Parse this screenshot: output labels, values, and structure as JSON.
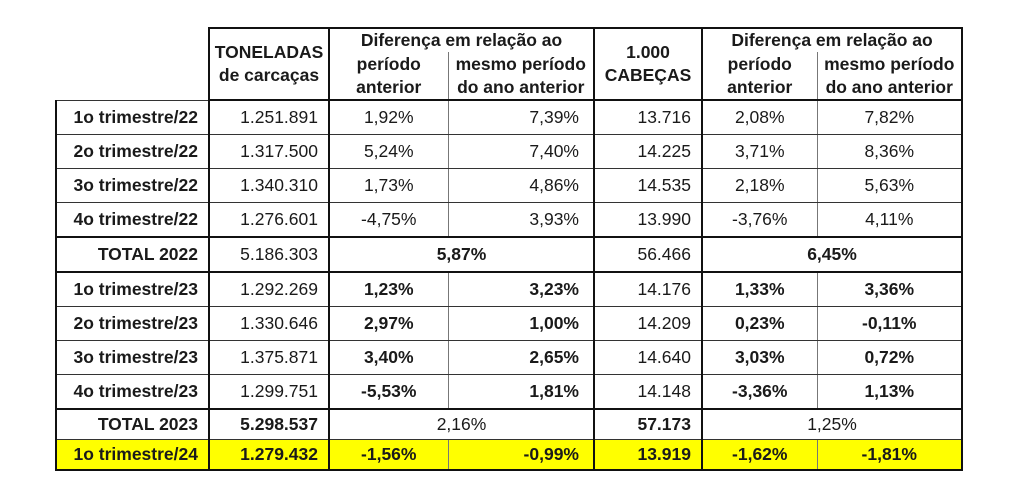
{
  "header": {
    "col_tons": [
      "TONELADAS",
      "de carcaças"
    ],
    "col_diff_group": "Diferença em relação ao",
    "col_prev_period": [
      "período",
      "anterior"
    ],
    "col_same_period_prev_year": [
      "mesmo período",
      "do ano anterior"
    ],
    "col_heads": [
      "1.000",
      "CABEÇAS"
    ],
    "col_diff_group_2": "Diferença em relação ao",
    "col_prev_period_2": [
      "período",
      "anterior"
    ],
    "col_same_period_prev_year_2": [
      "mesmo período",
      "do ano anterior"
    ]
  },
  "rows": [
    {
      "label": "1o trimestre/22",
      "tons": "1.251.891",
      "tons_prev": "1,92%",
      "tons_yoy": "7,39%",
      "heads": "13.716",
      "heads_prev": "2,08%",
      "heads_yoy": "7,82%"
    },
    {
      "label": "2o trimestre/22",
      "tons": "1.317.500",
      "tons_prev": "5,24%",
      "tons_yoy": "7,40%",
      "heads": "14.225",
      "heads_prev": "3,71%",
      "heads_yoy": "8,36%"
    },
    {
      "label": "3o trimestre/22",
      "tons": "1.340.310",
      "tons_prev": "1,73%",
      "tons_yoy": "4,86%",
      "heads": "14.535",
      "heads_prev": "2,18%",
      "heads_yoy": "5,63%"
    },
    {
      "label": "4o trimestre/22",
      "tons": "1.276.601",
      "tons_prev": "-4,75%",
      "tons_yoy": "3,93%",
      "heads": "13.990",
      "heads_prev": "-3,76%",
      "heads_yoy": "4,11%"
    },
    {
      "label": "TOTAL 2022",
      "tons": "5.186.303",
      "tons_diff": "5,87%",
      "heads": "56.466",
      "heads_diff": "6,45%"
    },
    {
      "label": "1o trimestre/23",
      "tons": "1.292.269",
      "tons_prev": "1,23%",
      "tons_yoy": "3,23%",
      "heads": "14.176",
      "heads_prev": "1,33%",
      "heads_yoy": "3,36%"
    },
    {
      "label": "2o trimestre/23",
      "tons": "1.330.646",
      "tons_prev": "2,97%",
      "tons_yoy": "1,00%",
      "heads": "14.209",
      "heads_prev": "0,23%",
      "heads_yoy": "-0,11%"
    },
    {
      "label": "3o trimestre/23",
      "tons": "1.375.871",
      "tons_prev": "3,40%",
      "tons_yoy": "2,65%",
      "heads": "14.640",
      "heads_prev": "3,03%",
      "heads_yoy": "0,72%"
    },
    {
      "label": "4o trimestre/23",
      "tons": "1.299.751",
      "tons_prev": "-5,53%",
      "tons_yoy": "1,81%",
      "heads": "14.148",
      "heads_prev": "-3,36%",
      "heads_yoy": "1,13%"
    },
    {
      "label": "TOTAL 2023",
      "tons": "5.298.537",
      "tons_diff": "2,16%",
      "heads": "57.173",
      "heads_diff": "1,25%"
    },
    {
      "label": "1o trimestre/24",
      "tons": "1.279.432",
      "tons_prev": "-1,56%",
      "tons_yoy": "-0,99%",
      "heads": "13.919",
      "heads_prev": "-1,62%",
      "heads_yoy": "-1,81%"
    }
  ],
  "colors": {
    "highlight": "#ffff00",
    "border": "#111111",
    "inner_border": "#777777",
    "text": "#1a1a1a"
  }
}
